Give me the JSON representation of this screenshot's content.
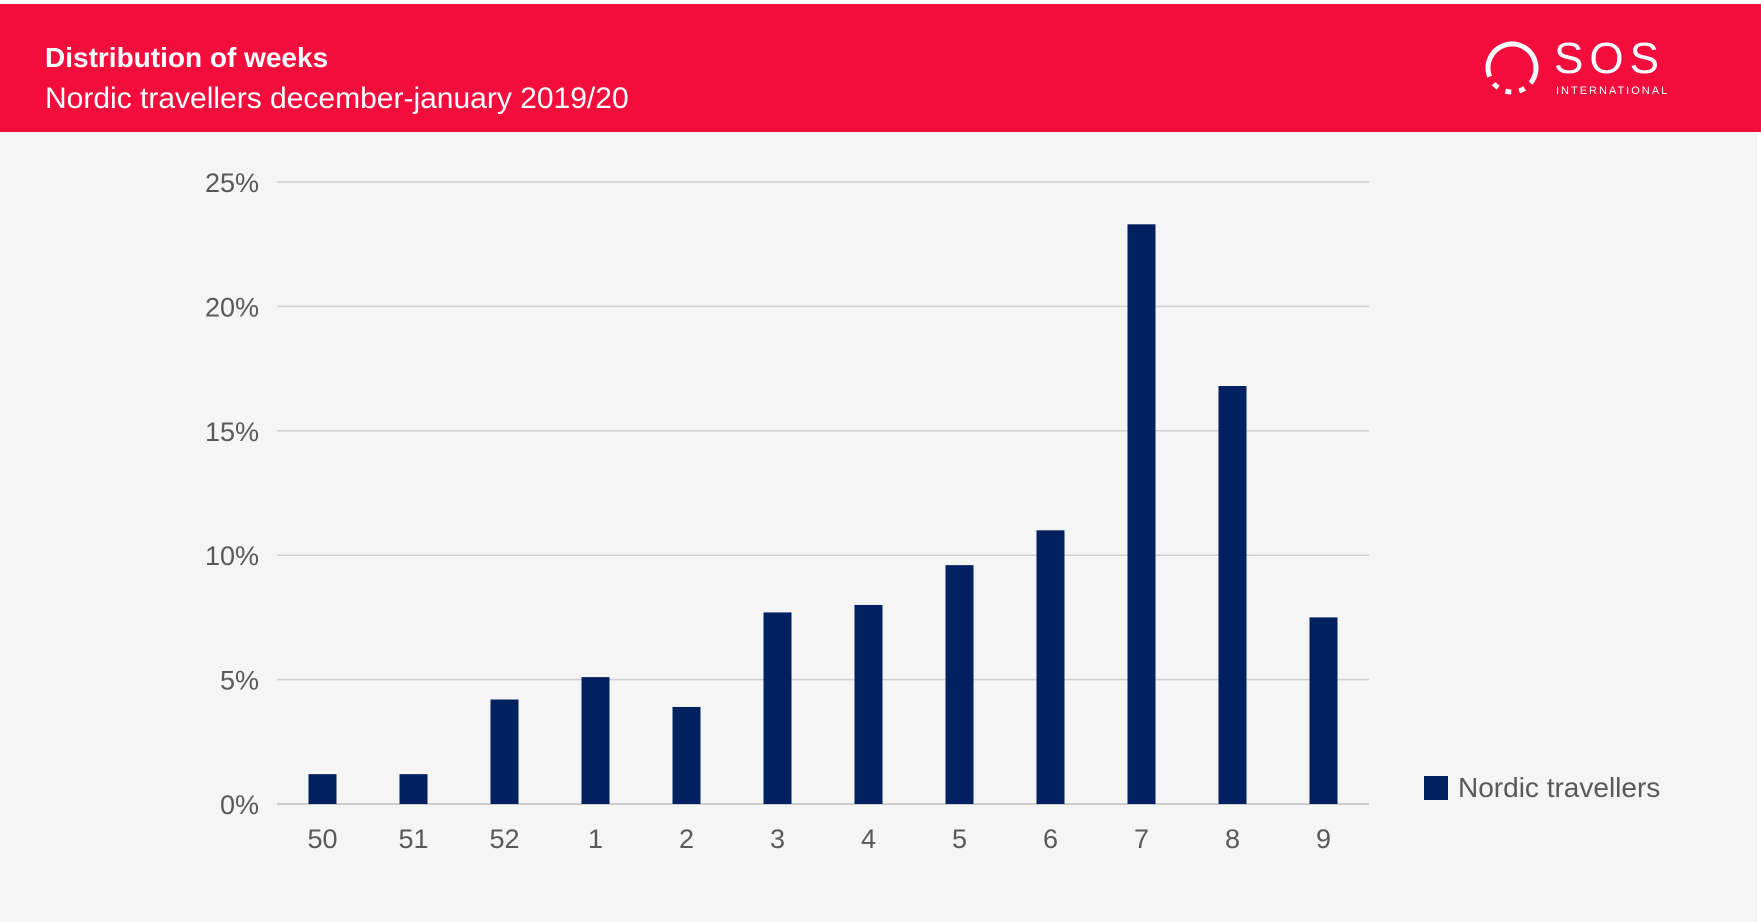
{
  "header": {
    "title": "Distribution of weeks",
    "subtitle": "Nordic travellers december-january 2019/20",
    "bg_color": "#f40c3c"
  },
  "logo": {
    "word": "SOS",
    "sub": "INTERNATIONAL"
  },
  "legend": {
    "label": "Nordic travellers"
  },
  "chart_data": {
    "type": "bar",
    "categories": [
      "50",
      "51",
      "52",
      "1",
      "2",
      "3",
      "4",
      "5",
      "6",
      "7",
      "8",
      "9"
    ],
    "series": [
      {
        "name": "Nordic travellers",
        "values": [
          1.2,
          1.2,
          4.2,
          5.1,
          3.9,
          7.7,
          8.0,
          9.6,
          11.0,
          23.3,
          16.8,
          7.5
        ],
        "color": "#002060"
      }
    ],
    "title": "Distribution of weeks",
    "subtitle": "Nordic travellers december-january 2019/20",
    "xlabel": "",
    "ylabel": "",
    "ylim": [
      0,
      25
    ],
    "yticks": [
      0,
      5,
      10,
      15,
      20,
      25
    ],
    "ytick_labels": [
      "0%",
      "5%",
      "10%",
      "15%",
      "20%",
      "25%"
    ],
    "grid": true,
    "legend_position": "right"
  }
}
